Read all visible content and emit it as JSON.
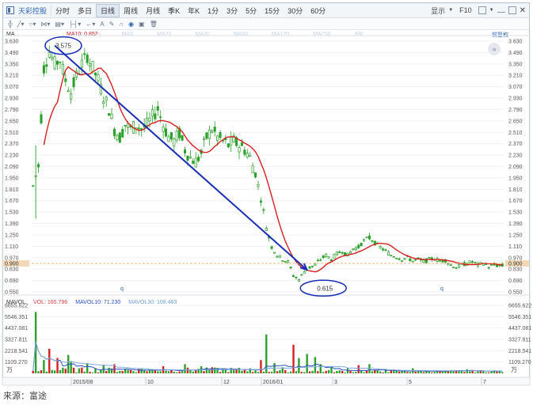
{
  "toolbar": {
    "stock_name": "天彩控股",
    "periods": [
      "分时",
      "多日",
      "日线",
      "周线",
      "月线",
      "季K",
      "年K",
      "1分",
      "3分",
      "5分",
      "15分",
      "30分",
      "60分"
    ],
    "active_period": "日线",
    "display_label": "显示",
    "f10_label": "F10"
  },
  "drawing_tools": [
    "line-tool",
    "shape-tool",
    "fib-tool",
    "period-tool",
    "measure-tool",
    "arrow-tool",
    "text-tool",
    "brush-tool",
    "magnet-tool",
    "eye-tool",
    "delete-tool"
  ],
  "legend": {
    "ma_label": "MA",
    "ma10_label": "MA10: 0.852",
    "faded_labels": [
      "MA5",
      "MA20",
      "MA30",
      "MA60",
      "MA120",
      "MA250",
      "BBI"
    ],
    "adjust_label": "前复权"
  },
  "volume_legend": {
    "label": "MAVOL",
    "vol_label": "VOL: 165.796",
    "mavol10_label": "MAVOL10: 71.230",
    "mavol30_label": "MAVOL30: 108.463"
  },
  "caption": "来源：富途",
  "colors": {
    "up": "#2ca02c",
    "down": "#2ca02c",
    "ma10": "#d62020",
    "trend": "#1a2fb4",
    "current_price_line": "#e8a34b",
    "vol_ma10": "#2a50c0",
    "vol_ma30": "#7fa9d8"
  },
  "chart_data": {
    "type": "candlestick",
    "price_axis": {
      "ticks": [
        "3.630",
        "3.490",
        "3.350",
        "3.210",
        "3.070",
        "2.930",
        "2.790",
        "2.650",
        "2.510",
        "2.370",
        "2.230",
        "2.090",
        "1.950",
        "1.810",
        "1.670",
        "1.530",
        "1.390",
        "1.250",
        "1.110",
        "0.970",
        "0.830",
        "0.690",
        "0.550"
      ],
      "current_price": "0.900",
      "range": [
        0.55,
        3.63
      ]
    },
    "volume_axis": {
      "ticks": [
        "6655.622",
        "5546.351",
        "4437.081",
        "3327.811",
        "2218.541",
        "1109.270"
      ],
      "unit": "万",
      "range": [
        0,
        6655.622
      ]
    },
    "x_labels": [
      "2015/08",
      "10",
      "12",
      "2016/01",
      "3",
      "5",
      "7"
    ],
    "annotations": [
      {
        "text": "3.575",
        "value": 3.575,
        "label": "high"
      },
      {
        "text": "0.615",
        "value": 0.615,
        "label": "low"
      }
    ],
    "trendline": {
      "from": 3.575,
      "to": 0.82
    },
    "price_anchors": [
      [
        0,
        1.85
      ],
      [
        2,
        2.1
      ],
      [
        4,
        3.3
      ],
      [
        6,
        3.5
      ],
      [
        8,
        3.35
      ],
      [
        10,
        3.4
      ],
      [
        12,
        3.15
      ],
      [
        14,
        3.0
      ],
      [
        16,
        3.2
      ],
      [
        18,
        3.35
      ],
      [
        20,
        3.45
      ],
      [
        22,
        3.3
      ],
      [
        24,
        3.15
      ],
      [
        26,
        2.95
      ],
      [
        28,
        2.8
      ],
      [
        30,
        2.55
      ],
      [
        32,
        2.45
      ],
      [
        34,
        2.6
      ],
      [
        36,
        2.55
      ],
      [
        38,
        2.6
      ],
      [
        40,
        2.55
      ],
      [
        42,
        2.6
      ],
      [
        44,
        2.7
      ],
      [
        46,
        2.8
      ],
      [
        48,
        2.6
      ],
      [
        50,
        2.45
      ],
      [
        52,
        2.4
      ],
      [
        54,
        2.5
      ],
      [
        56,
        2.3
      ],
      [
        58,
        2.2
      ],
      [
        60,
        2.15
      ],
      [
        62,
        2.25
      ],
      [
        64,
        2.45
      ],
      [
        66,
        2.55
      ],
      [
        68,
        2.45
      ],
      [
        70,
        2.4
      ],
      [
        72,
        2.35
      ],
      [
        74,
        2.4
      ],
      [
        76,
        2.35
      ],
      [
        78,
        2.3
      ],
      [
        80,
        2.2
      ],
      [
        82,
        2.0
      ],
      [
        84,
        1.7
      ],
      [
        86,
        1.35
      ],
      [
        88,
        1.1
      ],
      [
        90,
        1.0
      ],
      [
        92,
        0.95
      ],
      [
        94,
        0.92
      ],
      [
        96,
        0.75
      ],
      [
        98,
        0.7
      ],
      [
        100,
        0.8
      ],
      [
        102,
        0.85
      ],
      [
        104,
        0.88
      ],
      [
        106,
        0.95
      ],
      [
        108,
        1.0
      ],
      [
        110,
        0.95
      ],
      [
        112,
        1.02
      ],
      [
        114,
        1.05
      ],
      [
        116,
        1.0
      ],
      [
        118,
        1.08
      ],
      [
        120,
        1.1
      ],
      [
        122,
        1.18
      ],
      [
        124,
        1.22
      ],
      [
        126,
        1.15
      ],
      [
        128,
        1.1
      ],
      [
        130,
        1.05
      ],
      [
        132,
        1.0
      ],
      [
        134,
        0.98
      ],
      [
        136,
        0.95
      ],
      [
        138,
        0.97
      ],
      [
        140,
        0.93
      ],
      [
        142,
        0.95
      ],
      [
        144,
        0.92
      ],
      [
        146,
        0.95
      ],
      [
        148,
        0.96
      ],
      [
        150,
        0.93
      ],
      [
        152,
        0.94
      ],
      [
        154,
        0.88
      ],
      [
        156,
        0.85
      ],
      [
        158,
        0.88
      ],
      [
        160,
        0.9
      ],
      [
        162,
        0.92
      ],
      [
        164,
        0.88
      ],
      [
        166,
        0.9
      ],
      [
        168,
        0.86
      ],
      [
        170,
        0.88
      ],
      [
        172,
        0.87
      ]
    ],
    "volume_spikes": [
      [
        1,
        6000
      ],
      [
        4,
        1300
      ],
      [
        6,
        2400
      ],
      [
        9,
        1500
      ],
      [
        13,
        1800
      ],
      [
        14,
        1200
      ],
      [
        20,
        1000
      ],
      [
        26,
        800
      ],
      [
        30,
        900
      ],
      [
        40,
        500
      ],
      [
        48,
        700
      ],
      [
        56,
        900
      ],
      [
        62,
        700
      ],
      [
        66,
        600
      ],
      [
        80,
        500
      ],
      [
        84,
        1300
      ],
      [
        86,
        3800
      ],
      [
        89,
        1000
      ],
      [
        92,
        600
      ],
      [
        96,
        2800
      ],
      [
        98,
        1500
      ],
      [
        101,
        1900
      ],
      [
        104,
        1600
      ],
      [
        106,
        900
      ],
      [
        110,
        700
      ],
      [
        116,
        500
      ],
      [
        120,
        800
      ],
      [
        124,
        900
      ],
      [
        130,
        400
      ],
      [
        140,
        500
      ],
      [
        150,
        300
      ],
      [
        160,
        400
      ],
      [
        170,
        300
      ]
    ],
    "candle_count": 174
  }
}
